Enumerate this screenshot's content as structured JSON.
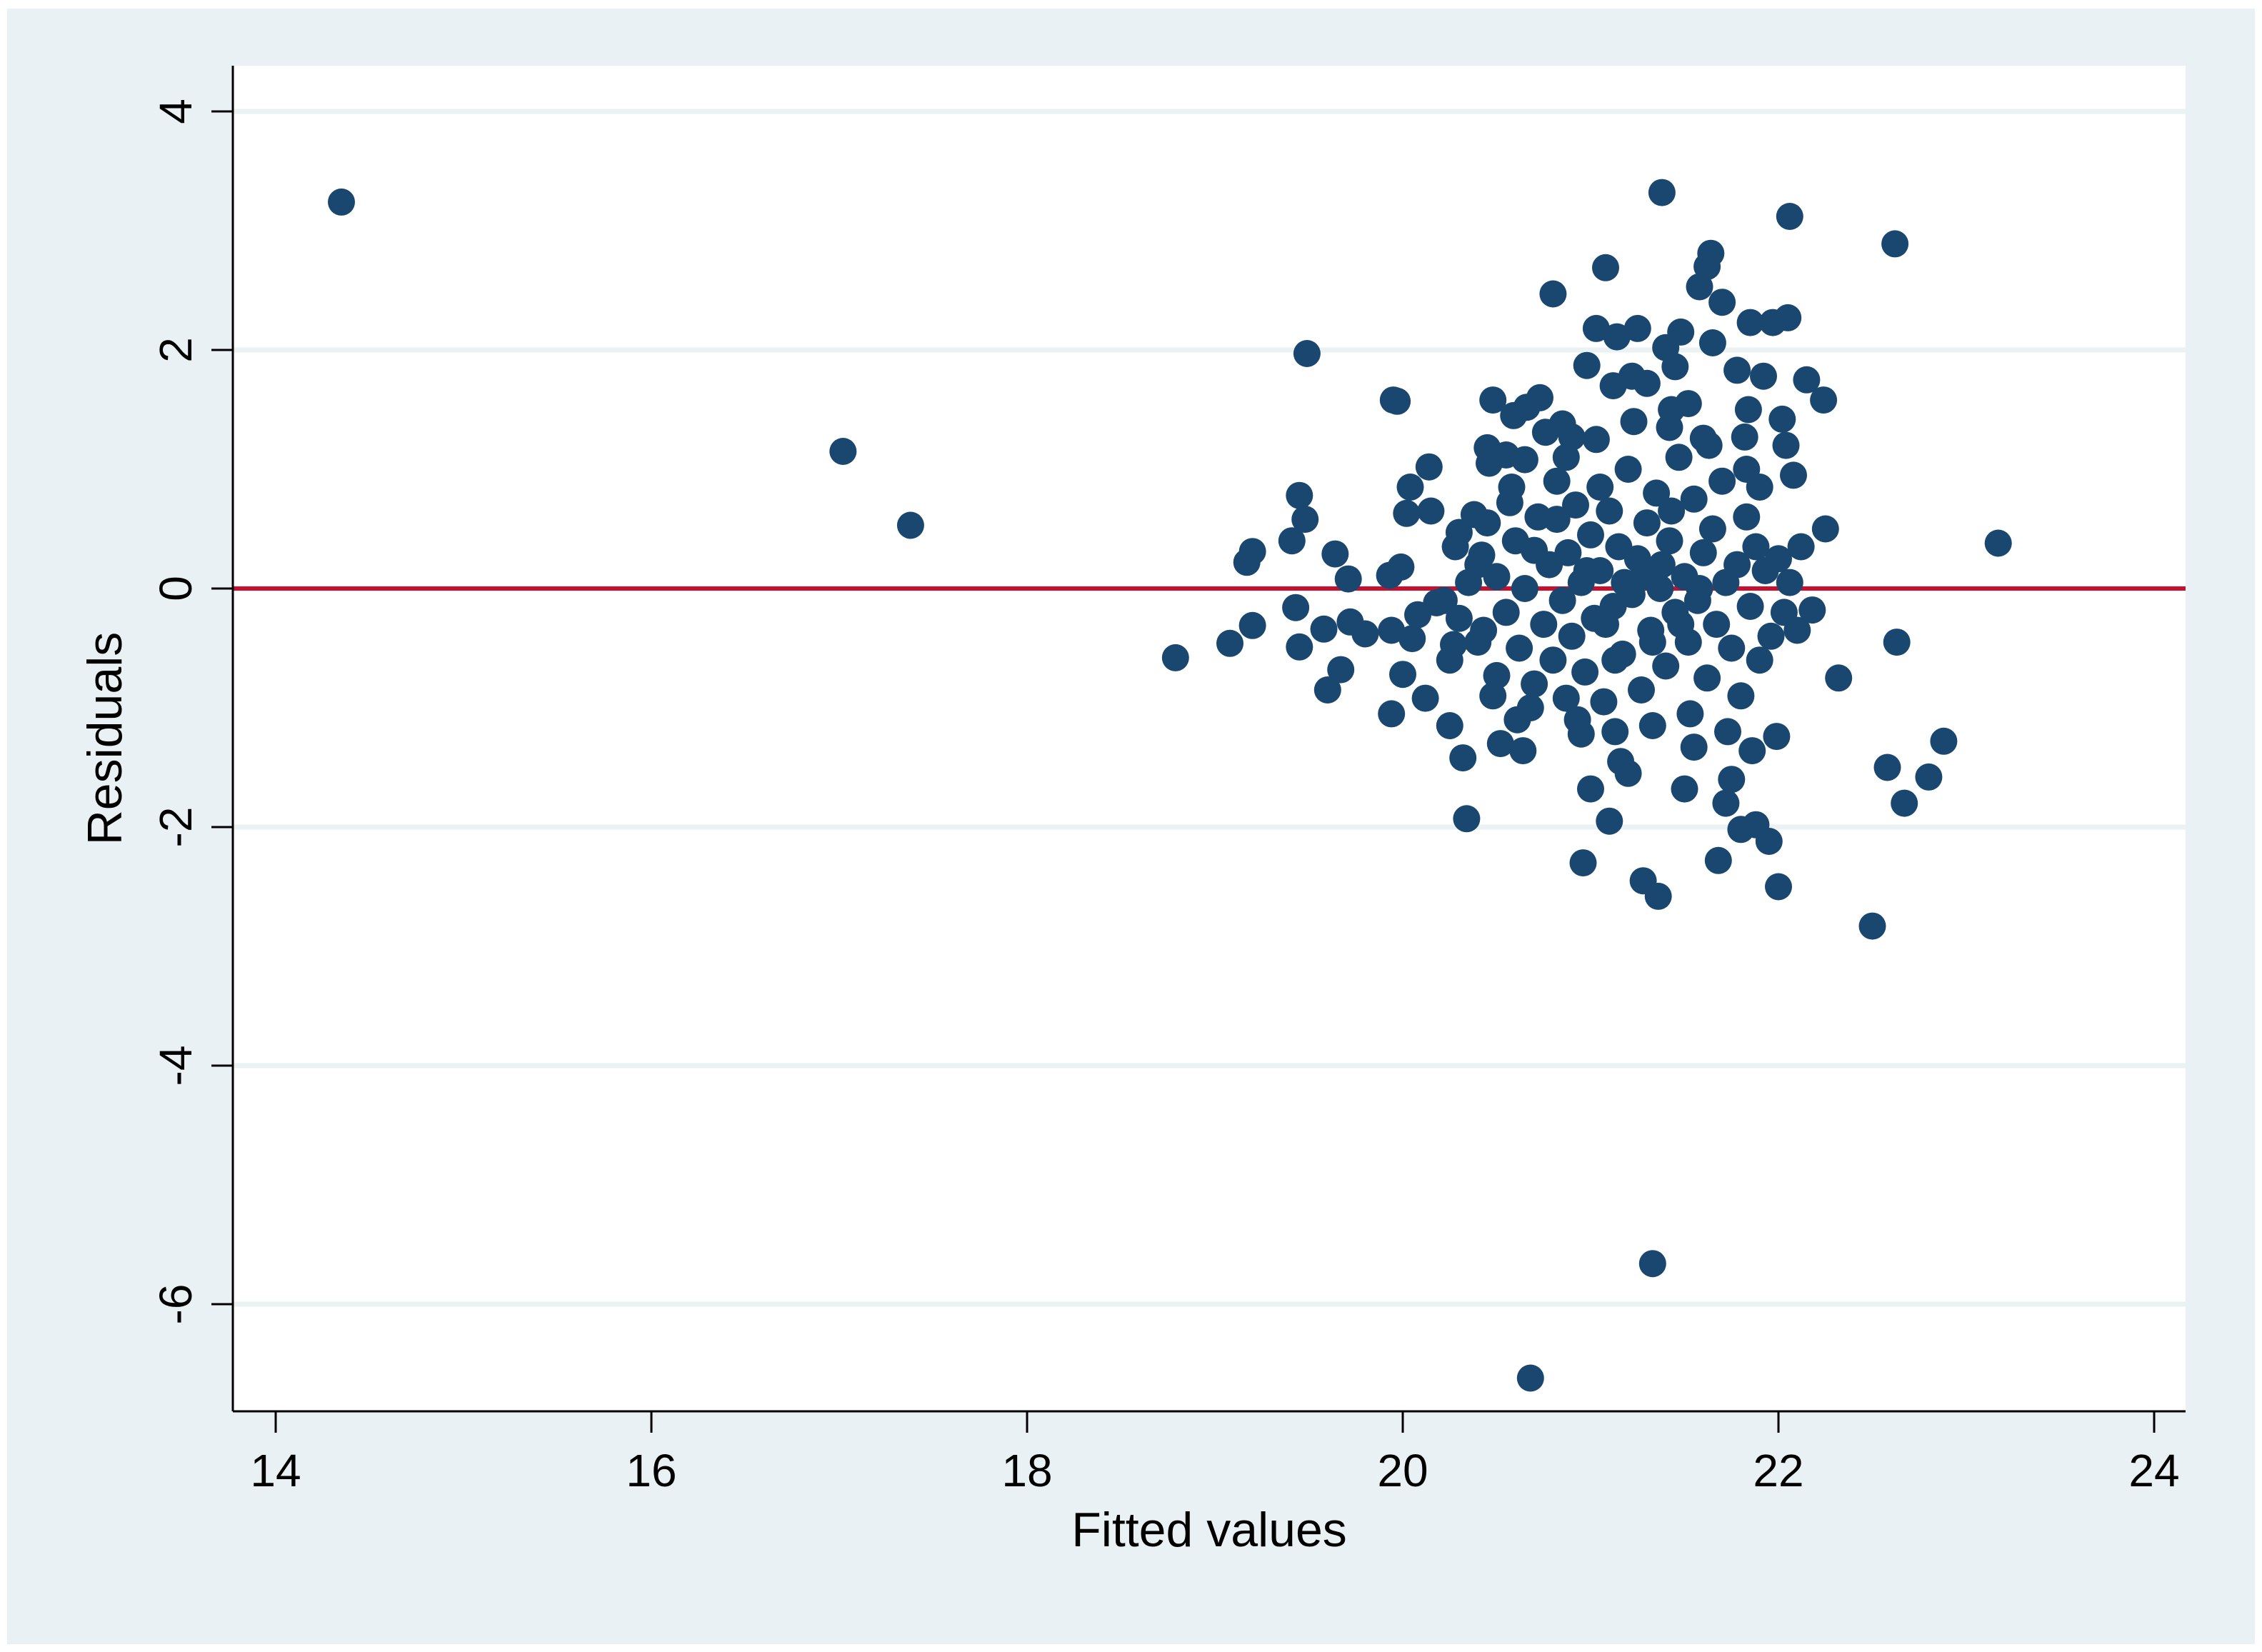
{
  "chart_data": {
    "type": "scatter",
    "title": "",
    "xlabel": "Fitted values",
    "ylabel": "Residuals",
    "xlim": [
      14,
      24
    ],
    "ylim": [
      -6.9,
      4.3
    ],
    "xticks": [
      14,
      16,
      18,
      20,
      22,
      24
    ],
    "xtick_labels": [
      "14",
      "16",
      "18",
      "20",
      "22",
      "24"
    ],
    "yticks": [
      4,
      2,
      0,
      -2,
      -4,
      -6
    ],
    "ytick_labels": [
      "4",
      "2",
      "0",
      "-2",
      "-4",
      "-6"
    ],
    "grid": true,
    "reference_line": {
      "y": 0,
      "color": "#c8102e"
    },
    "colors": {
      "points": "#1a476f",
      "grid": "#eaf2f3",
      "plot_bg": "#ffffff",
      "frame_bg": "#e9f1f4"
    },
    "series": [
      {
        "values": [
          [
            14.35,
            3.24
          ],
          [
            17.02,
            1.15
          ],
          [
            17.38,
            0.53
          ],
          [
            18.79,
            -0.58
          ],
          [
            19.08,
            -0.46
          ],
          [
            19.17,
            0.22
          ],
          [
            19.2,
            0.31
          ],
          [
            19.2,
            -0.31
          ],
          [
            19.41,
            0.4
          ],
          [
            19.43,
            -0.16
          ],
          [
            19.45,
            0.78
          ],
          [
            19.45,
            -0.49
          ],
          [
            19.48,
            0.58
          ],
          [
            19.49,
            1.97
          ],
          [
            19.58,
            -0.34
          ],
          [
            19.6,
            -0.85
          ],
          [
            19.64,
            0.29
          ],
          [
            19.67,
            -0.68
          ],
          [
            19.71,
            0.08
          ],
          [
            19.72,
            -0.28
          ],
          [
            19.8,
            -0.38
          ],
          [
            19.93,
            0.11
          ],
          [
            19.94,
            -0.35
          ],
          [
            19.94,
            -1.05
          ],
          [
            19.95,
            1.58
          ],
          [
            19.97,
            1.57
          ],
          [
            19.99,
            0.18
          ],
          [
            20.0,
            -0.72
          ],
          [
            20.02,
            0.63
          ],
          [
            20.04,
            0.85
          ],
          [
            20.05,
            -0.42
          ],
          [
            20.08,
            -0.22
          ],
          [
            20.12,
            -0.92
          ],
          [
            20.14,
            1.02
          ],
          [
            20.15,
            0.65
          ],
          [
            20.18,
            -0.12
          ],
          [
            20.22,
            -0.1
          ],
          [
            20.25,
            -1.15
          ],
          [
            20.27,
            -0.47
          ],
          [
            20.3,
            0.47
          ],
          [
            20.32,
            -1.42
          ],
          [
            20.34,
            -1.93
          ],
          [
            20.38,
            0.62
          ],
          [
            20.4,
            -0.45
          ],
          [
            20.42,
            0.28
          ],
          [
            20.45,
            1.18
          ],
          [
            20.46,
            1.05
          ],
          [
            20.48,
            1.58
          ],
          [
            20.5,
            -0.73
          ],
          [
            20.52,
            -1.3
          ],
          [
            20.55,
            1.12
          ],
          [
            20.57,
            0.72
          ],
          [
            20.59,
            1.45
          ],
          [
            20.61,
            -1.1
          ],
          [
            20.64,
            -1.36
          ],
          [
            20.65,
            1.08
          ],
          [
            20.66,
            1.52
          ],
          [
            20.68,
            -6.62
          ],
          [
            20.7,
            0.32
          ],
          [
            20.73,
            1.6
          ],
          [
            20.76,
            1.31
          ],
          [
            20.8,
            2.47
          ],
          [
            20.82,
            0.58
          ],
          [
            20.85,
            1.38
          ],
          [
            20.87,
            -0.92
          ],
          [
            20.9,
            1.27
          ],
          [
            20.95,
            -1.22
          ],
          [
            20.96,
            -2.3
          ],
          [
            20.98,
            1.87
          ],
          [
            21.0,
            -1.68
          ],
          [
            21.03,
            2.18
          ],
          [
            21.05,
            0.85
          ],
          [
            21.08,
            2.69
          ],
          [
            21.1,
            -1.95
          ],
          [
            21.12,
            1.7
          ],
          [
            21.14,
            2.11
          ],
          [
            21.16,
            -1.45
          ],
          [
            21.2,
            -1.55
          ],
          [
            21.22,
            1.78
          ],
          [
            21.25,
            2.18
          ],
          [
            21.28,
            -2.45
          ],
          [
            21.3,
            1.72
          ],
          [
            21.33,
            -5.66
          ],
          [
            21.36,
            -2.58
          ],
          [
            21.38,
            3.32
          ],
          [
            21.4,
            2.02
          ],
          [
            21.42,
            1.35
          ],
          [
            21.45,
            1.86
          ],
          [
            21.48,
            2.15
          ],
          [
            21.5,
            -1.68
          ],
          [
            21.52,
            1.55
          ],
          [
            21.55,
            -1.33
          ],
          [
            21.58,
            2.53
          ],
          [
            21.6,
            1.26
          ],
          [
            21.62,
            2.7
          ],
          [
            21.64,
            2.81
          ],
          [
            21.65,
            2.06
          ],
          [
            21.68,
            -2.28
          ],
          [
            21.7,
            2.4
          ],
          [
            21.72,
            -1.8
          ],
          [
            21.75,
            -1.6
          ],
          [
            21.78,
            1.83
          ],
          [
            21.8,
            -2.02
          ],
          [
            21.82,
            1.27
          ],
          [
            21.84,
            1.5
          ],
          [
            21.85,
            2.23
          ],
          [
            21.86,
            -1.36
          ],
          [
            21.88,
            -1.98
          ],
          [
            21.9,
            0.85
          ],
          [
            21.92,
            1.78
          ],
          [
            21.95,
            -2.12
          ],
          [
            21.97,
            2.23
          ],
          [
            21.99,
            -1.24
          ],
          [
            22.0,
            -2.5
          ],
          [
            22.02,
            1.42
          ],
          [
            22.04,
            1.2
          ],
          [
            22.05,
            2.27
          ],
          [
            22.06,
            3.12
          ],
          [
            22.08,
            0.95
          ],
          [
            22.1,
            -0.35
          ],
          [
            22.12,
            0.35
          ],
          [
            22.15,
            1.75
          ],
          [
            22.18,
            -0.18
          ],
          [
            22.24,
            1.58
          ],
          [
            22.25,
            0.5
          ],
          [
            22.32,
            -0.75
          ],
          [
            22.5,
            -2.83
          ],
          [
            22.58,
            -1.5
          ],
          [
            22.62,
            2.89
          ],
          [
            22.63,
            -0.45
          ],
          [
            22.67,
            -1.8
          ],
          [
            22.8,
            -1.58
          ],
          [
            22.88,
            -1.28
          ],
          [
            23.17,
            0.38
          ],
          [
            20.5,
            0.1
          ],
          [
            20.55,
            -0.2
          ],
          [
            20.6,
            0.4
          ],
          [
            20.62,
            -0.5
          ],
          [
            20.65,
            0.0
          ],
          [
            20.7,
            -0.8
          ],
          [
            20.72,
            0.6
          ],
          [
            20.75,
            -0.3
          ],
          [
            20.78,
            0.2
          ],
          [
            20.8,
            -0.6
          ],
          [
            20.82,
            0.9
          ],
          [
            20.85,
            -0.1
          ],
          [
            20.88,
            0.3
          ],
          [
            20.9,
            -0.4
          ],
          [
            20.92,
            0.7
          ],
          [
            20.95,
            0.05
          ],
          [
            20.97,
            -0.7
          ],
          [
            21.0,
            0.45
          ],
          [
            21.02,
            -0.25
          ],
          [
            21.05,
            0.15
          ],
          [
            21.07,
            -0.95
          ],
          [
            21.1,
            0.65
          ],
          [
            21.12,
            -0.15
          ],
          [
            21.15,
            0.35
          ],
          [
            21.17,
            -0.55
          ],
          [
            21.2,
            1.0
          ],
          [
            21.22,
            -0.05
          ],
          [
            21.25,
            0.25
          ],
          [
            21.27,
            -0.85
          ],
          [
            21.3,
            0.55
          ],
          [
            21.32,
            -0.35
          ],
          [
            21.35,
            0.8
          ],
          [
            21.37,
            0.0
          ],
          [
            21.4,
            -0.65
          ],
          [
            21.42,
            0.4
          ],
          [
            21.45,
            -0.2
          ],
          [
            21.47,
            1.1
          ],
          [
            21.5,
            0.1
          ],
          [
            21.52,
            -0.45
          ],
          [
            21.55,
            0.75
          ],
          [
            21.57,
            -0.1
          ],
          [
            21.6,
            0.3
          ],
          [
            21.62,
            -0.75
          ],
          [
            21.65,
            0.5
          ],
          [
            21.67,
            -0.3
          ],
          [
            21.7,
            0.9
          ],
          [
            21.72,
            0.05
          ],
          [
            21.75,
            -0.5
          ],
          [
            21.78,
            0.2
          ],
          [
            21.8,
            -0.9
          ],
          [
            21.83,
            0.6
          ],
          [
            21.85,
            -0.15
          ],
          [
            21.88,
            0.35
          ],
          [
            21.9,
            -0.6
          ],
          [
            21.93,
            0.15
          ],
          [
            21.96,
            -0.4
          ],
          [
            22.0,
            0.25
          ],
          [
            22.03,
            -0.2
          ],
          [
            22.06,
            0.05
          ],
          [
            20.4,
            0.2
          ],
          [
            20.43,
            -0.35
          ],
          [
            20.35,
            0.05
          ],
          [
            20.3,
            -0.25
          ],
          [
            20.28,
            0.35
          ],
          [
            20.25,
            -0.6
          ],
          [
            20.45,
            0.55
          ],
          [
            20.48,
            -0.9
          ],
          [
            20.58,
            0.85
          ],
          [
            20.68,
            -1.0
          ],
          [
            20.87,
            1.1
          ],
          [
            20.93,
            -1.1
          ],
          [
            21.03,
            1.25
          ],
          [
            21.13,
            -1.2
          ],
          [
            21.23,
            1.4
          ],
          [
            21.33,
            -1.15
          ],
          [
            21.43,
            1.5
          ],
          [
            21.53,
            -1.05
          ],
          [
            21.63,
            1.2
          ],
          [
            21.73,
            -1.2
          ],
          [
            21.83,
            1.0
          ],
          [
            21.18,
            0.05
          ],
          [
            21.28,
            0.1
          ],
          [
            21.38,
            0.2
          ],
          [
            21.08,
            -0.3
          ],
          [
            21.48,
            -0.3
          ],
          [
            21.58,
            0.0
          ],
          [
            20.98,
            0.15
          ],
          [
            21.13,
            -0.6
          ],
          [
            21.33,
            -0.45
          ],
          [
            21.43,
            0.65
          ]
        ]
      }
    ]
  }
}
